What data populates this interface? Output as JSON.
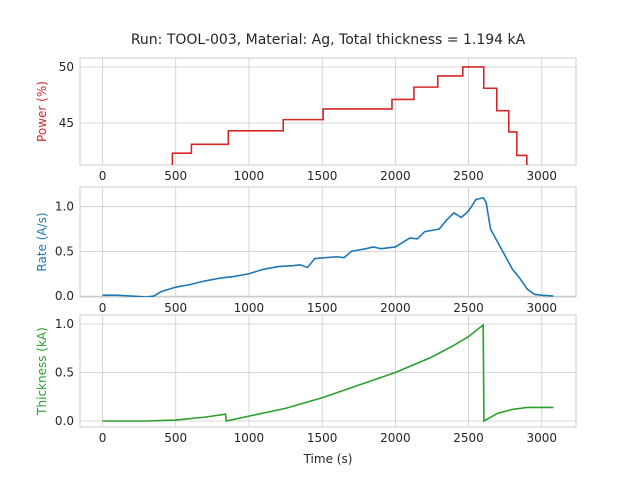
{
  "chart_data": [
    {
      "type": "line",
      "drawstyle": "steps-post",
      "title": "Run: TOOL-003, Material: Ag, Total thickness = 1.194 kA",
      "ylabel": "Power (%)",
      "color": "#d62728",
      "grid": true,
      "x": [
        0,
        477,
        607,
        859,
        1234,
        1507,
        1977,
        2127,
        2290,
        2461,
        2604,
        2693,
        2775,
        2830,
        2898
      ],
      "values": [
        40,
        42.3,
        43.1,
        44.3,
        45.3,
        46.25,
        47.1,
        48.2,
        49.2,
        50.0,
        48.1,
        46.1,
        44.2,
        42.1,
        40
      ],
      "xlim": [
        -154,
        3234
      ],
      "xticks": [
        0,
        500,
        1000,
        1500,
        2000,
        2500,
        3000
      ],
      "ylim": [
        41.25,
        50.8
      ],
      "yticks": [
        45,
        50
      ]
    },
    {
      "type": "line",
      "ylabel": "Rate (A/s)",
      "color": "#1f77b4",
      "grid": true,
      "x": [
        0,
        100,
        200,
        300,
        350,
        400,
        500,
        600,
        700,
        800,
        900,
        1000,
        1100,
        1200,
        1300,
        1350,
        1400,
        1450,
        1600,
        1650,
        1700,
        1800,
        1850,
        1900,
        2000,
        2050,
        2100,
        2150,
        2200,
        2300,
        2350,
        2400,
        2450,
        2500,
        2550,
        2600,
        2620,
        2650,
        2700,
        2750,
        2800,
        2850,
        2900,
        2950,
        3000,
        3080
      ],
      "values": [
        0.01,
        0.01,
        0.0,
        -0.01,
        0.0,
        0.05,
        0.1,
        0.13,
        0.17,
        0.2,
        0.22,
        0.25,
        0.3,
        0.33,
        0.34,
        0.35,
        0.32,
        0.42,
        0.44,
        0.43,
        0.5,
        0.53,
        0.55,
        0.53,
        0.55,
        0.6,
        0.65,
        0.64,
        0.72,
        0.75,
        0.85,
        0.93,
        0.88,
        0.95,
        1.08,
        1.1,
        1.05,
        0.75,
        0.6,
        0.45,
        0.3,
        0.2,
        0.08,
        0.02,
        0.01,
        0.0
      ],
      "xlim": [
        -154,
        3234
      ],
      "xticks": [
        0,
        500,
        1000,
        1500,
        2000,
        2500,
        3000
      ],
      "ylim": [
        -0.01,
        1.22
      ],
      "yticks": [
        {
          "value": 0,
          "label": "0.0"
        },
        0.5,
        {
          "value": 1,
          "label": "1.0"
        }
      ]
    },
    {
      "type": "line",
      "ylabel": "Thickness (kA)",
      "xlabel": "Time (s)",
      "color": "#2ca02c",
      "grid": true,
      "x": [
        0,
        300,
        500,
        700,
        840,
        845,
        1000,
        1250,
        1500,
        1750,
        2000,
        2250,
        2400,
        2500,
        2600,
        2605,
        2700,
        2800,
        2900,
        3080
      ],
      "values": [
        0,
        0,
        0.01,
        0.04,
        0.07,
        0.0,
        0.05,
        0.13,
        0.24,
        0.37,
        0.5,
        0.66,
        0.78,
        0.87,
        0.99,
        0.0,
        0.08,
        0.12,
        0.14,
        0.14
      ],
      "xlim": [
        -154,
        3234
      ],
      "xticks": [
        0,
        500,
        1000,
        1500,
        2000,
        2500,
        3000
      ],
      "ylim": [
        -0.062,
        1.093
      ],
      "yticks": [
        {
          "value": 0,
          "label": "0.0"
        },
        0.5,
        {
          "value": 1,
          "label": "1.0"
        }
      ]
    }
  ]
}
